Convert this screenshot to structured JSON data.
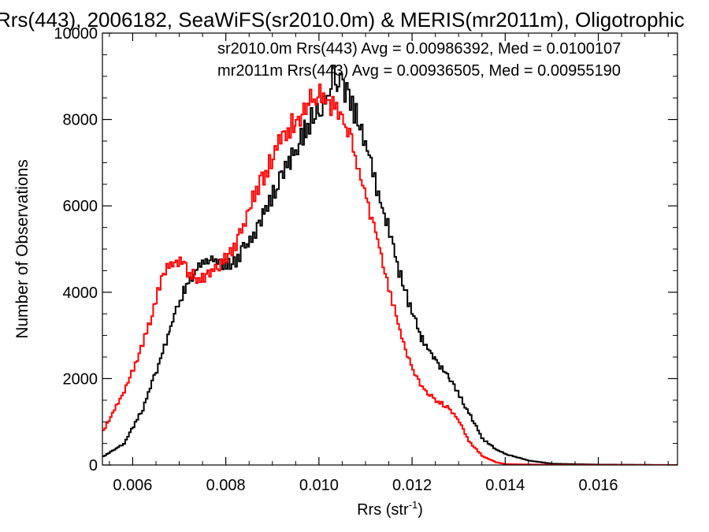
{
  "chart_data": {
    "type": "line",
    "title": "Rrs(443), 2006182, SeaWiFS(sr2010.0m) & MERIS(mr2011m), Oligotrophic",
    "xlabel": "Rrs (str",
    "xlabel_sup": "-1",
    "xlabel_close": ")",
    "ylabel": "Number of Observations",
    "xlim": [
      0.00535,
      0.0177
    ],
    "ylim": [
      0,
      10000
    ],
    "x_ticks": [
      0.006,
      0.008,
      0.01,
      0.012,
      0.014,
      0.016
    ],
    "x_tick_labels": [
      "0.006",
      "0.008",
      "0.010",
      "0.012",
      "0.014",
      "0.016"
    ],
    "y_ticks": [
      0,
      2000,
      4000,
      6000,
      8000,
      10000
    ],
    "y_tick_labels": [
      "0",
      "2000",
      "4000",
      "6000",
      "8000",
      "10000"
    ],
    "legend_placement": "top-right",
    "series": [
      {
        "name": "sr2010.0m",
        "legend_text": "sr2010.0m Rrs(443) Avg = 0.00986392, Med = 0.0100107",
        "color": "#000000",
        "points": [
          [
            0.00535,
            200
          ],
          [
            0.0058,
            500
          ],
          [
            0.0062,
            1300
          ],
          [
            0.0065,
            2200
          ],
          [
            0.0068,
            3200
          ],
          [
            0.0071,
            4100
          ],
          [
            0.0074,
            4600
          ],
          [
            0.0076,
            4750
          ],
          [
            0.0078,
            4700
          ],
          [
            0.008,
            4650
          ],
          [
            0.0082,
            4750
          ],
          [
            0.0085,
            5200
          ],
          [
            0.0088,
            5800
          ],
          [
            0.0091,
            6500
          ],
          [
            0.0094,
            7100
          ],
          [
            0.0097,
            7800
          ],
          [
            0.01,
            8300
          ],
          [
            0.0102,
            8600
          ],
          [
            0.0103,
            9000
          ],
          [
            0.0104,
            8800
          ],
          [
            0.0105,
            8800
          ],
          [
            0.0107,
            8300
          ],
          [
            0.0109,
            7800
          ],
          [
            0.0111,
            7000
          ],
          [
            0.0113,
            6100
          ],
          [
            0.0115,
            5400
          ],
          [
            0.0117,
            4500
          ],
          [
            0.0119,
            3800
          ],
          [
            0.0122,
            2900
          ],
          [
            0.0125,
            2400
          ],
          [
            0.0128,
            2000
          ],
          [
            0.013,
            1600
          ],
          [
            0.0132,
            1200
          ],
          [
            0.0135,
            600
          ],
          [
            0.0138,
            350
          ],
          [
            0.014,
            250
          ],
          [
            0.0145,
            100
          ],
          [
            0.015,
            30
          ],
          [
            0.016,
            10
          ],
          [
            0.0177,
            0
          ]
        ]
      },
      {
        "name": "mr2011m",
        "legend_text": "mr2011m Rrs(443) Avg = 0.00936505, Med = 0.00955190",
        "color": "#ff0000",
        "points": [
          [
            0.00535,
            800
          ],
          [
            0.0058,
            1700
          ],
          [
            0.0062,
            2800
          ],
          [
            0.0064,
            3500
          ],
          [
            0.0066,
            4300
          ],
          [
            0.0068,
            4650
          ],
          [
            0.007,
            4750
          ],
          [
            0.0072,
            4450
          ],
          [
            0.0074,
            4300
          ],
          [
            0.0076,
            4400
          ],
          [
            0.0078,
            4600
          ],
          [
            0.008,
            4800
          ],
          [
            0.0082,
            5100
          ],
          [
            0.0084,
            5700
          ],
          [
            0.0086,
            6300
          ],
          [
            0.0088,
            6700
          ],
          [
            0.009,
            7200
          ],
          [
            0.0092,
            7600
          ],
          [
            0.0095,
            8000
          ],
          [
            0.0098,
            8400
          ],
          [
            0.01,
            8550
          ],
          [
            0.0102,
            8400
          ],
          [
            0.0104,
            8300
          ],
          [
            0.0106,
            7700
          ],
          [
            0.0108,
            7000
          ],
          [
            0.011,
            6200
          ],
          [
            0.0112,
            5400
          ],
          [
            0.0114,
            4500
          ],
          [
            0.0116,
            3600
          ],
          [
            0.0118,
            2800
          ],
          [
            0.012,
            2200
          ],
          [
            0.0122,
            1800
          ],
          [
            0.0125,
            1500
          ],
          [
            0.0128,
            1300
          ],
          [
            0.013,
            1000
          ],
          [
            0.0132,
            550
          ],
          [
            0.0135,
            200
          ],
          [
            0.0138,
            60
          ],
          [
            0.014,
            20
          ],
          [
            0.015,
            5
          ],
          [
            0.0177,
            0
          ]
        ]
      }
    ]
  }
}
